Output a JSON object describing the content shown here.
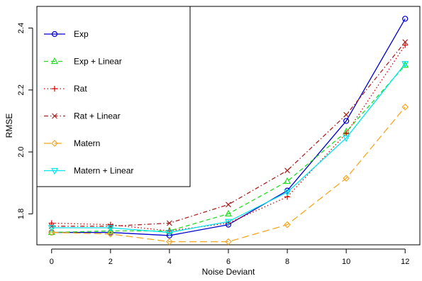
{
  "chart_data": {
    "type": "line",
    "xlabel": "Noise Deviant",
    "ylabel": "RMSE",
    "x": [
      0,
      2,
      4,
      6,
      8,
      10,
      12
    ],
    "xticks": [
      "0",
      "2",
      "4",
      "6",
      "8",
      "10",
      "12"
    ],
    "yticks": [
      "1.8",
      "2.0",
      "2.2",
      "2.4"
    ],
    "xlim": [
      -0.5,
      12.5
    ],
    "ylim": [
      1.7,
      2.47
    ],
    "grid": false,
    "legend_position": "top-left",
    "series": [
      {
        "name": "Exp",
        "color": "#0000cc",
        "dash": "solid",
        "marker": "circle",
        "values": [
          1.74,
          1.74,
          1.73,
          1.765,
          1.875,
          2.1,
          2.43
        ]
      },
      {
        "name": "Exp + Linear",
        "color": "#22dd22",
        "dash": "dashed",
        "marker": "triangle-up",
        "values": [
          1.74,
          1.745,
          1.745,
          1.8,
          1.905,
          2.065,
          2.28
        ]
      },
      {
        "name": "Rat",
        "color": "#dd0000",
        "dash": "dotted",
        "marker": "plus",
        "values": [
          1.77,
          1.765,
          1.745,
          1.77,
          1.855,
          2.06,
          2.345
        ]
      },
      {
        "name": "Rat + Linear",
        "color": "#aa2222",
        "dash": "dashdot",
        "marker": "cross",
        "values": [
          1.76,
          1.76,
          1.77,
          1.83,
          1.94,
          2.12,
          2.355
        ]
      },
      {
        "name": "Matern",
        "color": "#f5a623",
        "dash": "longdash",
        "marker": "diamond",
        "values": [
          1.74,
          1.735,
          1.71,
          1.71,
          1.765,
          1.915,
          2.145
        ]
      },
      {
        "name": "Matern + Linear",
        "color": "#00e5ee",
        "dash": "solid",
        "marker": "triangle-down",
        "values": [
          1.755,
          1.755,
          1.74,
          1.775,
          1.87,
          2.045,
          2.285
        ]
      }
    ]
  }
}
